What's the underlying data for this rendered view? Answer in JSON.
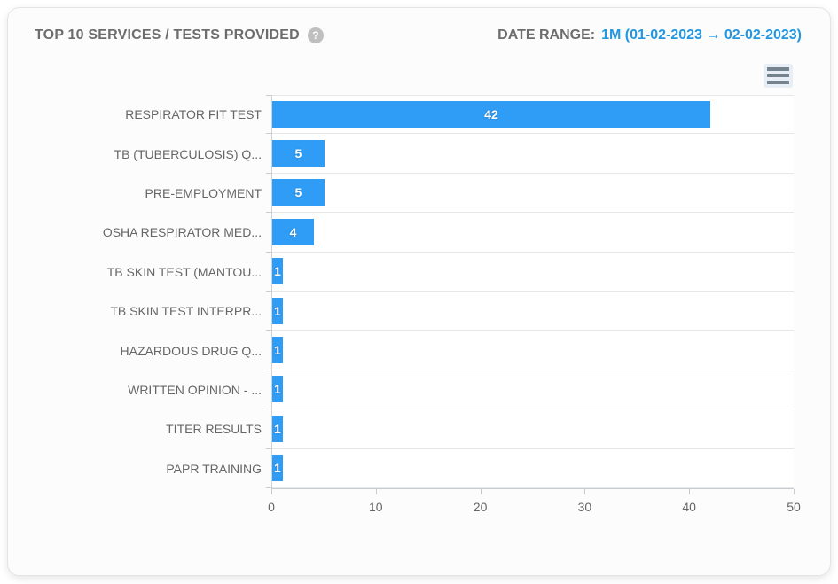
{
  "header": {
    "title": "TOP 10 SERVICES / TESTS PROVIDED",
    "help_icon_glyph": "?",
    "date_range_label": "DATE RANGE:",
    "date_range_value": "1M (01-02-2023 → 02-02-2023)"
  },
  "menu": {
    "context_menu_icon": "hamburger-menu-icon"
  },
  "colors": {
    "bar": "#2f9cf5",
    "accent_text": "#2397e0",
    "title_text": "#6d6d6d",
    "axis_label_text": "#666666",
    "gridline": "#e7e7e7",
    "axis_line": "#c8cdd2",
    "help_icon_bg": "#bfbfbf"
  },
  "chart_data": {
    "type": "bar",
    "orientation": "horizontal",
    "title": "TOP 10 SERVICES / TESTS PROVIDED",
    "categories": [
      "RESPIRATOR FIT TEST",
      "TB (TUBERCULOSIS) Q...",
      "PRE-EMPLOYMENT",
      "OSHA RESPIRATOR MED...",
      "TB SKIN TEST (MANTOU...",
      "TB SKIN TEST INTERPR...",
      "HAZARDOUS DRUG Q...",
      "WRITTEN OPINION - ...",
      "TITER RESULTS",
      "PAPR TRAINING"
    ],
    "values": [
      42,
      5,
      5,
      4,
      1,
      1,
      1,
      1,
      1,
      1
    ],
    "data_labels": "inside-bar white bold values",
    "xlabel": "",
    "ylabel": "",
    "xlim": [
      0,
      50
    ],
    "x_ticks": [
      0,
      10,
      20,
      30,
      40,
      50
    ],
    "grid": "horizontal category separators only, no vertical gridlines",
    "legend": "none"
  }
}
